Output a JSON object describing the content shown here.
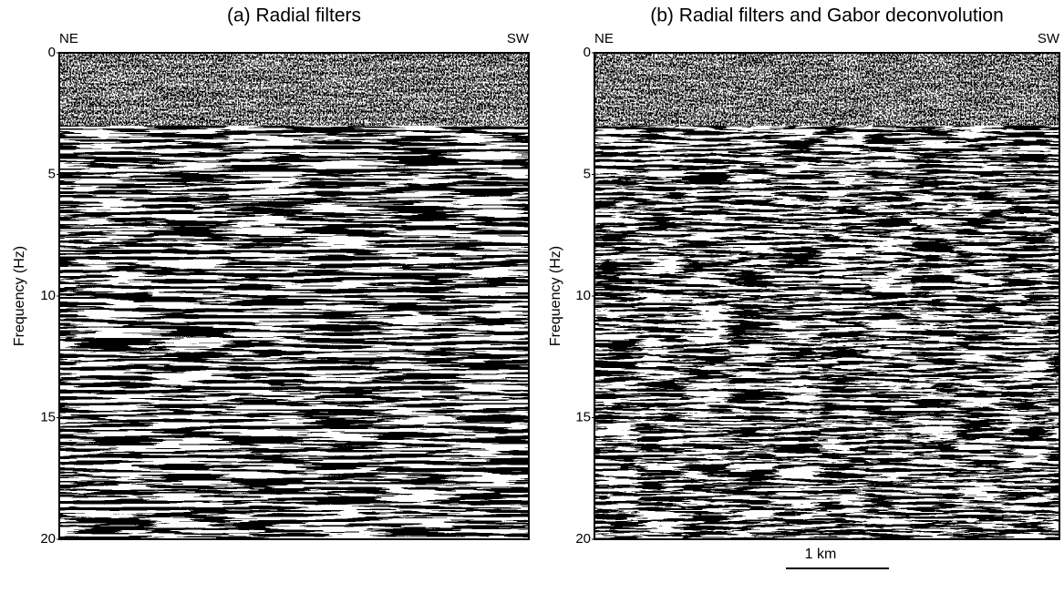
{
  "panels": [
    {
      "title": "(a) Radial filters",
      "left_label": "NE",
      "right_label": "SW",
      "y_label": "Frequency (Hz)",
      "ylim": [
        0,
        20
      ],
      "yticks": [
        0,
        5,
        10,
        15,
        20
      ]
    },
    {
      "title": "(b) Radial filters and Gabor deconvolution",
      "left_label": "NE",
      "right_label": "SW",
      "y_label": "Frequency (Hz)",
      "ylim": [
        0,
        20
      ],
      "yticks": [
        0,
        5,
        10,
        15,
        20
      ]
    }
  ],
  "scale_bar": {
    "label": "1 km"
  }
}
